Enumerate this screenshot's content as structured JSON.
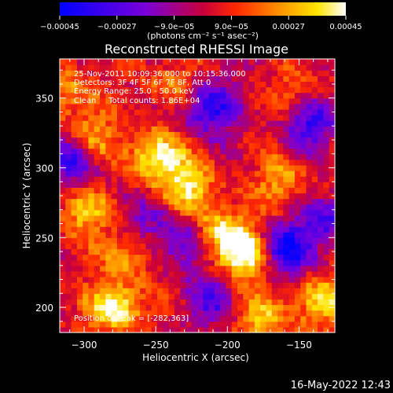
{
  "chart_data": {
    "type": "heatmap",
    "title": "Reconstructed RHESSI Image",
    "xlabel": "Heliocentric X (arcsec)",
    "ylabel": "Heliocentric Y (arcsec)",
    "xlim": [
      -317,
      -125
    ],
    "ylim": [
      182,
      378
    ],
    "x_ticks": [
      -300,
      -250,
      -200,
      -150
    ],
    "x_tick_labels": [
      "−300",
      "−250",
      "−200",
      "−150"
    ],
    "y_ticks": [
      200,
      250,
      300,
      350
    ],
    "y_tick_labels": [
      "200",
      "250",
      "300",
      "350"
    ],
    "colorbar": {
      "range": [
        -0.00045,
        0.00045
      ],
      "tick_labels": [
        "−0.00045",
        "−0.00027",
        "−9.0e−05",
        "9.0e−05",
        "0.00027",
        "0.00045"
      ],
      "unit_label": "(photons cm⁻² s⁻¹ asec⁻²)",
      "colors": [
        "#0000ff",
        "#7a00d8",
        "#c8003c",
        "#ff2a00",
        "#ff9a00",
        "#ffe500",
        "#ffffff"
      ]
    },
    "annotations": [
      "25-Nov-2011 10:09:36.000 to 10:15:36.000",
      "Detectors: 3F 4F 5F 6F 7F 8F, Att 0",
      "Energy Range: 25.0 - 50.0 keV",
      "Clean     Total counts: 1.86E+04"
    ],
    "peak_label": "Position of Peak = [-282,363]",
    "peak_position": [
      -282,
      363
    ],
    "bright_sources": [
      {
        "x": -250,
        "y": 308,
        "intensity": 0.00045
      },
      {
        "x": -226,
        "y": 287,
        "intensity": 0.00035
      },
      {
        "x": -205,
        "y": 253,
        "intensity": 0.00038
      },
      {
        "x": -188,
        "y": 238,
        "intensity": 0.00045
      },
      {
        "x": -278,
        "y": 200,
        "intensity": 0.00045
      },
      {
        "x": -295,
        "y": 320,
        "intensity": 0.0003
      },
      {
        "x": -300,
        "y": 270,
        "intensity": 0.0003
      },
      {
        "x": -162,
        "y": 290,
        "intensity": 0.00025
      },
      {
        "x": -175,
        "y": 192,
        "intensity": 0.0003
      },
      {
        "x": -135,
        "y": 204,
        "intensity": 0.0003
      },
      {
        "x": -150,
        "y": 355,
        "intensity": 0.00018
      },
      {
        "x": -240,
        "y": 360,
        "intensity": 0.0002
      },
      {
        "x": -268,
        "y": 240,
        "intensity": 0.00028
      },
      {
        "x": -312,
        "y": 355,
        "intensity": 0.00025
      }
    ],
    "dark_sources": [
      {
        "x": -306,
        "y": 305,
        "intensity": -0.0004
      },
      {
        "x": -213,
        "y": 343,
        "intensity": -0.0004
      },
      {
        "x": -142,
        "y": 333,
        "intensity": -0.00035
      },
      {
        "x": -160,
        "y": 242,
        "intensity": -0.00045
      },
      {
        "x": -230,
        "y": 245,
        "intensity": -0.0003
      },
      {
        "x": -130,
        "y": 262,
        "intensity": -0.0003
      },
      {
        "x": -258,
        "y": 260,
        "intensity": -0.0002
      },
      {
        "x": -210,
        "y": 205,
        "intensity": -0.00025
      }
    ]
  },
  "timestamp": "16-May-2022 12:43"
}
